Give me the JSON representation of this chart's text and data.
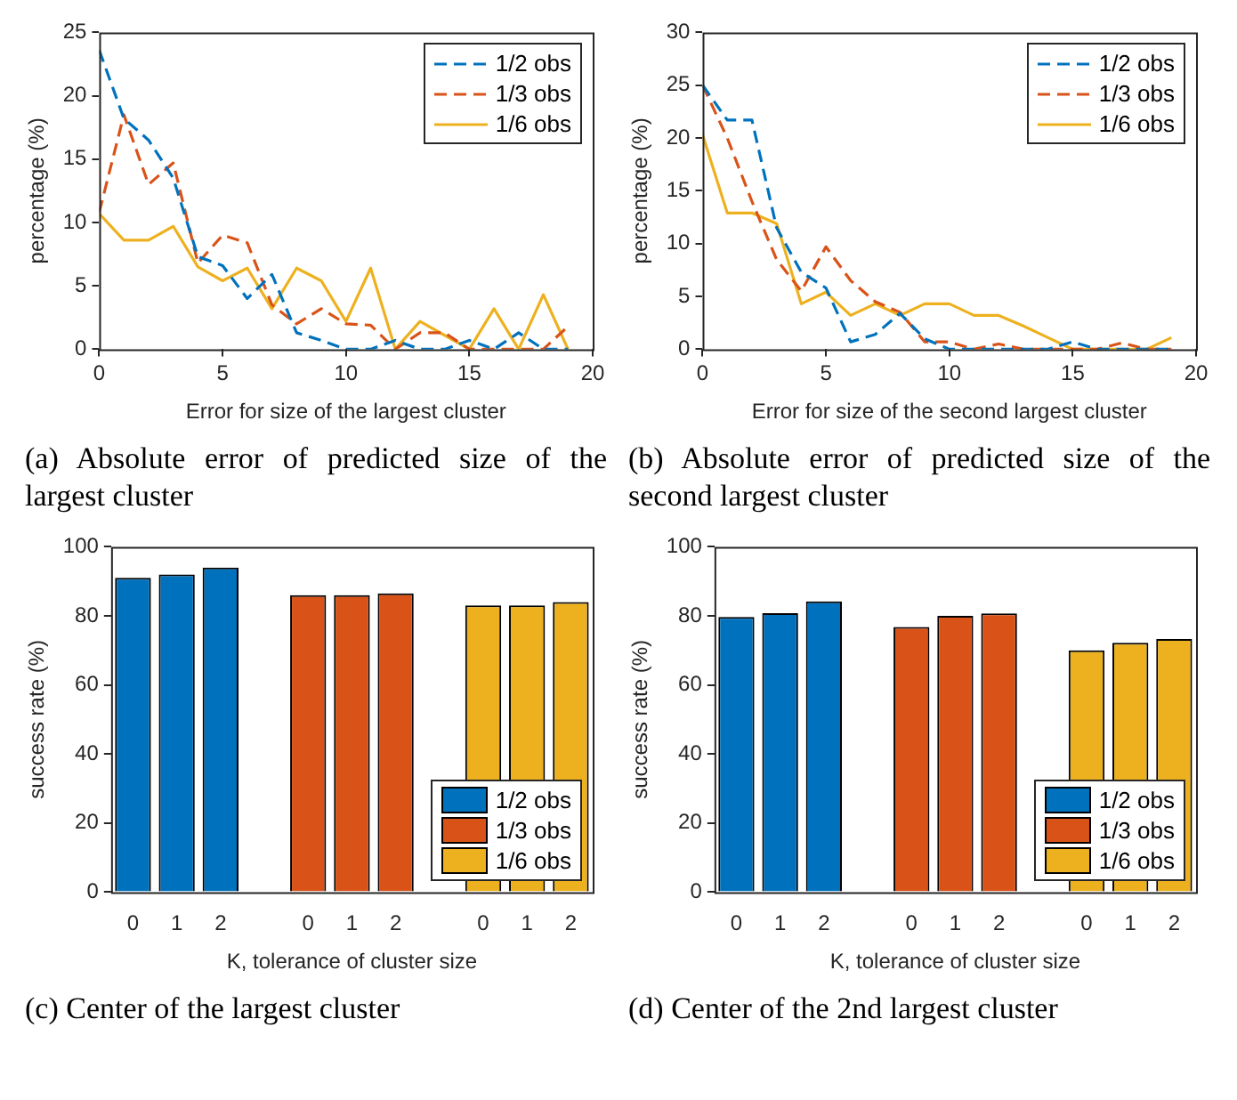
{
  "chart_data": [
    {
      "type": "line",
      "title": "(a) Absolute error of predicted size of the largest cluster",
      "xlabel": "Error for size of the largest cluster",
      "ylabel": "percentage (%)",
      "x": [
        0,
        1,
        2,
        3,
        4,
        5,
        6,
        7,
        8,
        9,
        10,
        11,
        12,
        13,
        14,
        15,
        16,
        17,
        18,
        19
      ],
      "xlim": [
        0,
        20
      ],
      "xticks": [
        0,
        5,
        10,
        15,
        20
      ],
      "ylim": [
        0,
        25
      ],
      "yticks": [
        0,
        5,
        10,
        15,
        20,
        25
      ],
      "legend": "top right",
      "series": [
        {
          "name": "1/2 obs",
          "color": "#0072bd",
          "line_style": "dashed",
          "values": [
            23.6,
            18.2,
            16.5,
            13.5,
            7.3,
            6.6,
            4.0,
            5.9,
            1.3,
            0.7,
            0,
            0,
            0.7,
            0,
            0,
            0.7,
            0,
            1.3,
            0,
            0
          ]
        },
        {
          "name": "1/3 obs",
          "color": "#d95319",
          "line_style": "dashed",
          "values": [
            10.8,
            18.5,
            13.0,
            14.7,
            6.8,
            9.0,
            8.4,
            3.5,
            2.0,
            3.2,
            2.0,
            1.9,
            0,
            1.3,
            1.3,
            0,
            0,
            0,
            0,
            1.8
          ]
        },
        {
          "name": "1/6 obs",
          "color": "#edb120",
          "line_style": "solid",
          "values": [
            10.7,
            8.6,
            8.6,
            9.7,
            6.5,
            5.4,
            6.4,
            3.2,
            6.4,
            5.4,
            2.2,
            6.4,
            0,
            2.2,
            1.1,
            0,
            3.2,
            0,
            4.3,
            0
          ]
        }
      ]
    },
    {
      "type": "line",
      "title": "(b) Absolute error of predicted size of the second largest cluster",
      "xlabel": "Error for size of the second largest cluster",
      "ylabel": "percentage (%)",
      "x": [
        0,
        1,
        2,
        3,
        4,
        5,
        6,
        7,
        8,
        9,
        10,
        11,
        12,
        13,
        14,
        15,
        16,
        17,
        18,
        19
      ],
      "xlim": [
        0,
        20
      ],
      "xticks": [
        0,
        5,
        10,
        15,
        20
      ],
      "ylim": [
        0,
        30
      ],
      "yticks": [
        0,
        5,
        10,
        15,
        20,
        25,
        30
      ],
      "legend": "top right",
      "series": [
        {
          "name": "1/2 obs",
          "color": "#0072bd",
          "line_style": "dashed",
          "values": [
            25,
            21.7,
            21.7,
            11.5,
            7.3,
            5.8,
            0.7,
            1.4,
            3.4,
            1.0,
            0,
            0,
            0,
            0,
            0,
            0.7,
            0,
            0,
            0,
            0
          ]
        },
        {
          "name": "1/3 obs",
          "color": "#d95319",
          "line_style": "dashed",
          "values": [
            25,
            20,
            14,
            8.5,
            5.5,
            9.7,
            6.5,
            4.5,
            3.5,
            0.7,
            0.7,
            0,
            0.5,
            0,
            0,
            0,
            0,
            0.6,
            0,
            0
          ]
        },
        {
          "name": "1/6 obs",
          "color": "#edb120",
          "line_style": "solid",
          "values": [
            20.3,
            12.9,
            12.9,
            11.9,
            4.3,
            5.4,
            3.2,
            4.3,
            3.2,
            4.3,
            4.3,
            3.2,
            3.2,
            2.2,
            1.1,
            0,
            0,
            0,
            0,
            1.1
          ]
        }
      ]
    },
    {
      "type": "bar",
      "title": "(c) Center of the largest cluster",
      "xlabel": "K, tolerance of cluster size",
      "ylabel": "success rate (%)",
      "categories": [
        "0",
        "1",
        "2",
        null,
        "0",
        "1",
        "2",
        null,
        "0",
        "1",
        "2"
      ],
      "ylim": [
        0,
        100
      ],
      "yticks": [
        0,
        20,
        40,
        60,
        80,
        100
      ],
      "legend": "bottom right",
      "series": [
        {
          "name": "1/2 obs",
          "color": "#0072bd",
          "values": [
            91,
            92,
            94,
            null,
            null,
            null,
            null,
            null,
            null,
            null,
            null
          ]
        },
        {
          "name": "1/3 obs",
          "color": "#d95319",
          "values": [
            null,
            null,
            null,
            null,
            86,
            86,
            86.5,
            null,
            null,
            null,
            null
          ]
        },
        {
          "name": "1/6 obs",
          "color": "#edb120",
          "values": [
            null,
            null,
            null,
            null,
            null,
            null,
            null,
            null,
            83,
            83,
            84
          ]
        }
      ]
    },
    {
      "type": "bar",
      "title": "(d) Center of the 2nd largest cluster",
      "xlabel": "K, tolerance of cluster size",
      "ylabel": "success rate (%)",
      "categories": [
        "0",
        "1",
        "2",
        null,
        "0",
        "1",
        "2",
        null,
        "0",
        "1",
        "2"
      ],
      "ylim": [
        0,
        100
      ],
      "yticks": [
        0,
        20,
        40,
        60,
        80,
        100
      ],
      "legend": "bottom right",
      "series": [
        {
          "name": "1/2 obs",
          "color": "#0072bd",
          "values": [
            79.7,
            80.8,
            84.2,
            null,
            null,
            null,
            null,
            null,
            null,
            null,
            null
          ]
        },
        {
          "name": "1/3 obs",
          "color": "#d95319",
          "values": [
            null,
            null,
            null,
            null,
            76.8,
            80,
            80.7,
            null,
            null,
            null,
            null
          ]
        },
        {
          "name": "1/6 obs",
          "color": "#edb120",
          "values": [
            null,
            null,
            null,
            null,
            null,
            null,
            null,
            null,
            70,
            72.2,
            73.3
          ]
        }
      ]
    }
  ]
}
